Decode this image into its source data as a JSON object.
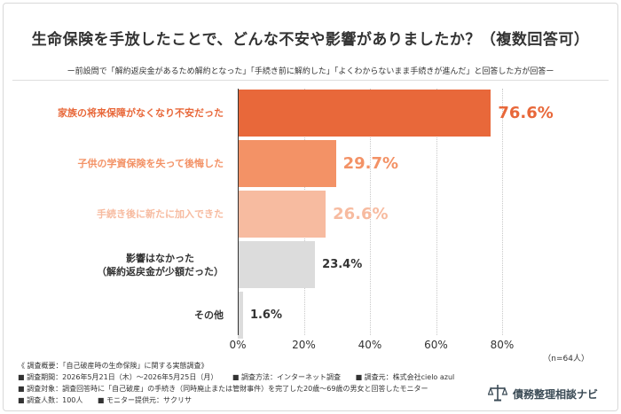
{
  "title": "生命保険を手放したことで、どんな不安や影響がありましたか？（複数回答可）",
  "subtitle": "ー前設問で「解約返戻金があるため解約となった」「手続き前に解約した」「よくわからないまま手続きが進んだ」と回答した方が回答ー",
  "chart_data": {
    "type": "bar",
    "orientation": "horizontal",
    "categories": [
      "家族の将来保障がなくなり不安だった",
      "子供の学資保険を失って後悔した",
      "手続き後に新たに加入できた",
      "影響はなかった\n（解約返戻金が少額だった）",
      "その他"
    ],
    "values": [
      76.6,
      29.7,
      26.6,
      23.4,
      1.6
    ],
    "value_labels": [
      "76.6%",
      "29.7%",
      "26.6%",
      "23.4%",
      "1.6%"
    ],
    "colors": [
      "#e8683a",
      "#f39266",
      "#f7bba0",
      "#dcdcdc",
      "#dcdcdc"
    ],
    "label_colors": [
      "#e8683a",
      "#f39266",
      "#f7bba0",
      "#333333",
      "#333333"
    ],
    "xlim": [
      0,
      85
    ],
    "xticks": [
      0,
      20,
      40,
      60,
      80
    ],
    "xtick_labels": [
      "0%",
      "20%",
      "40%",
      "60%",
      "80%"
    ],
    "grid": true,
    "note": "（n=64人）"
  },
  "footer": {
    "line1": "《 調査概要：「自己破産時の生命保険」に関する実態調査》",
    "line2": [
      "■ 調査期間：2026年5月21日（木）～2026年5月25日（月）",
      "■ 調査方法：インターネット調査",
      "■ 調査元：株式会社cielo azul"
    ],
    "line3": "■ 調査対象：調査回答時に「自己破産」の手続き（同時廃止または管財事件）を完了した20歳～69歳の男女と回答したモニター",
    "line4": [
      "■ 調査人数：100人",
      "■ モニター提供元：サクリサ"
    ]
  },
  "brand": {
    "name": "債務整理相談ナビ",
    "icon": "scales-icon",
    "color": "#3a4a55"
  }
}
